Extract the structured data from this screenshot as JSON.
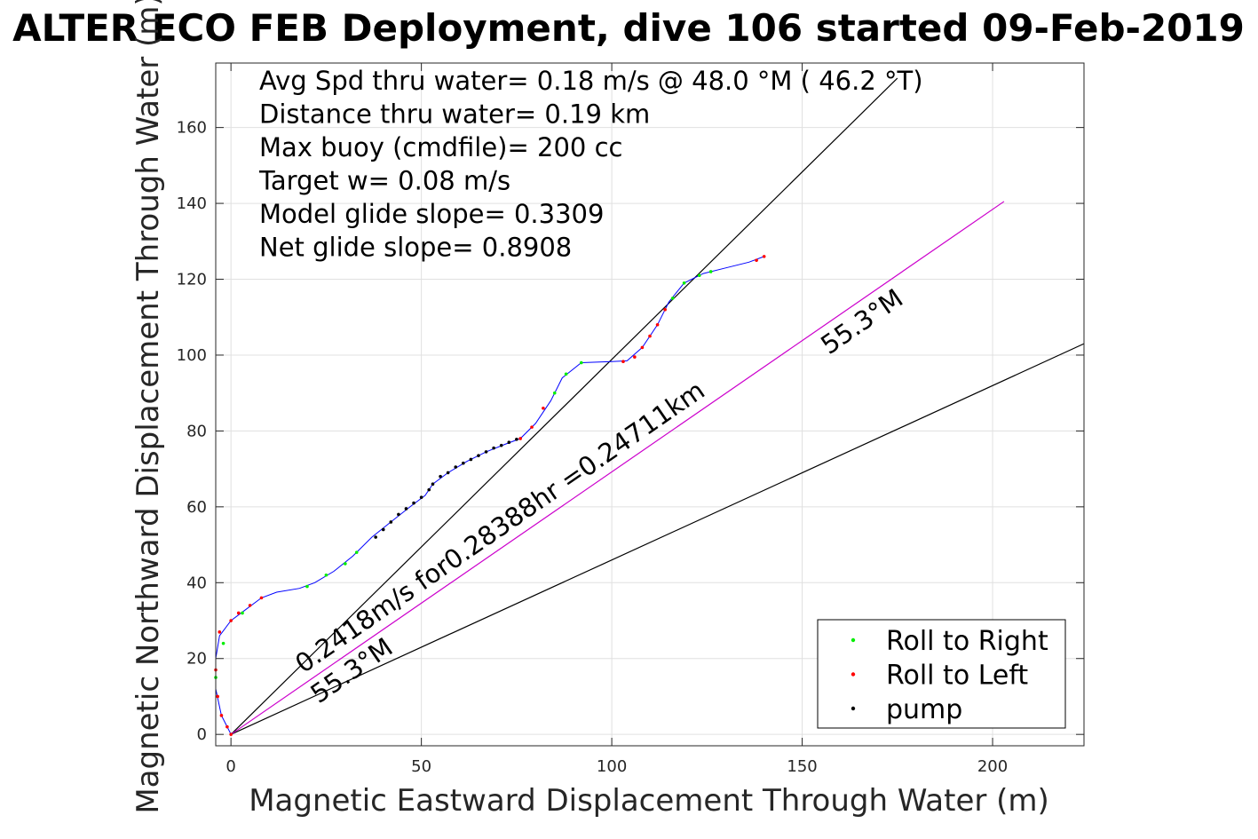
{
  "chart_data": {
    "type": "scatter",
    "title": "ALTER ECO FEB Deployment, dive 106 started 09-Feb-2019",
    "xlabel": "Magnetic Eastward Displacement Through Water (m)",
    "ylabel": "Magnetic Northward Displacement Through Water (m)",
    "xlim": [
      -4,
      224
    ],
    "ylim": [
      -3,
      177
    ],
    "xticks": [
      0,
      50,
      100,
      150,
      200
    ],
    "yticks": [
      0,
      20,
      40,
      60,
      80,
      100,
      120,
      140,
      160
    ],
    "grid": true,
    "info_lines": [
      "Avg Spd thru water=  0.18 m/s @  48.0 °M ( 46.2 °T)",
      "Distance thru water=  0.19 km",
      "Max buoy (cmdfile)= 200 cc",
      "Target w= 0.08 m/s",
      "Model glide slope= 0.3309",
      "Net glide slope= 0.8908"
    ],
    "track": [
      [
        0,
        0
      ],
      [
        -2.5,
        5
      ],
      [
        -4,
        12
      ],
      [
        -4,
        20
      ],
      [
        -3,
        26
      ],
      [
        0,
        30
      ],
      [
        4,
        33
      ],
      [
        8,
        36
      ],
      [
        12,
        37.5
      ],
      [
        18,
        38.5
      ],
      [
        22,
        40
      ],
      [
        27,
        43
      ],
      [
        32,
        47
      ],
      [
        37,
        52
      ],
      [
        42,
        56
      ],
      [
        47,
        60
      ],
      [
        51,
        63
      ],
      [
        53,
        66
      ],
      [
        57,
        69
      ],
      [
        62,
        72
      ],
      [
        67,
        74.5
      ],
      [
        72,
        76.5
      ],
      [
        76,
        78
      ],
      [
        80,
        82
      ],
      [
        84,
        88
      ],
      [
        87,
        94
      ],
      [
        92,
        98
      ],
      [
        100,
        98.3
      ],
      [
        104,
        98.5
      ],
      [
        108,
        102
      ],
      [
        112,
        108
      ],
      [
        115,
        114
      ],
      [
        119,
        119
      ],
      [
        124,
        121.5
      ],
      [
        130,
        123
      ],
      [
        136,
        124.5
      ],
      [
        140,
        126
      ]
    ],
    "track_color": "#0000ff",
    "series": [
      {
        "name": "Roll to Right",
        "color": "#00ee00",
        "points": [
          [
            -4,
            15
          ],
          [
            -2,
            24
          ],
          [
            3,
            32
          ],
          [
            20,
            39
          ],
          [
            25,
            42
          ],
          [
            30,
            45
          ],
          [
            33,
            48
          ],
          [
            85,
            90
          ],
          [
            88,
            95
          ],
          [
            92,
            98
          ],
          [
            116,
            115
          ],
          [
            119,
            119
          ],
          [
            123,
            121
          ],
          [
            126,
            122
          ]
        ]
      },
      {
        "name": "Roll to Left",
        "color": "#ff0000",
        "points": [
          [
            0,
            0
          ],
          [
            -1,
            2
          ],
          [
            -2.5,
            5
          ],
          [
            -3.5,
            10
          ],
          [
            -4,
            17
          ],
          [
            -3,
            27
          ],
          [
            0,
            30
          ],
          [
            2,
            32
          ],
          [
            5,
            34
          ],
          [
            8,
            36
          ],
          [
            76,
            78
          ],
          [
            79,
            81
          ],
          [
            82,
            86
          ],
          [
            103,
            98.3
          ],
          [
            106,
            99.5
          ],
          [
            108,
            102
          ],
          [
            110,
            105
          ],
          [
            112,
            108
          ],
          [
            114,
            112
          ],
          [
            138,
            125
          ],
          [
            140,
            126
          ]
        ]
      },
      {
        "name": "pump",
        "color": "#000000",
        "points": [
          [
            38,
            52
          ],
          [
            40,
            54
          ],
          [
            42,
            56
          ],
          [
            44,
            58
          ],
          [
            46,
            59.5
          ],
          [
            48,
            61
          ],
          [
            50,
            62.5
          ],
          [
            52,
            64.5
          ],
          [
            53,
            66
          ],
          [
            55,
            68
          ],
          [
            57,
            69
          ],
          [
            59,
            70.5
          ],
          [
            61,
            71.5
          ],
          [
            63,
            72.5
          ],
          [
            65,
            73.5
          ],
          [
            67,
            74.5
          ],
          [
            69,
            75.5
          ],
          [
            71,
            76.2
          ],
          [
            73,
            77
          ],
          [
            75,
            77.8
          ]
        ]
      }
    ],
    "heading_lines": [
      {
        "color": "#000000",
        "from": [
          0,
          0
        ],
        "to": [
          175,
          173
        ]
      },
      {
        "color": "#000000",
        "from": [
          0,
          0
        ],
        "to": [
          224,
          103
        ]
      },
      {
        "color": "#cc00cc",
        "from": [
          0,
          0
        ],
        "to": [
          203,
          140.5
        ]
      }
    ],
    "annotations": [
      {
        "text": "0.2418m/s for0.28388hr =0.24711km",
        "anchor": [
          19,
          16
        ],
        "angle": 34.7
      },
      {
        "text": "55.3°M",
        "anchor": [
          23,
          8
        ],
        "angle": 34.7
      },
      {
        "text": "55.3°M",
        "anchor": [
          157,
          100
        ],
        "angle": 34.7
      }
    ],
    "legend_position": "bottom-right"
  }
}
